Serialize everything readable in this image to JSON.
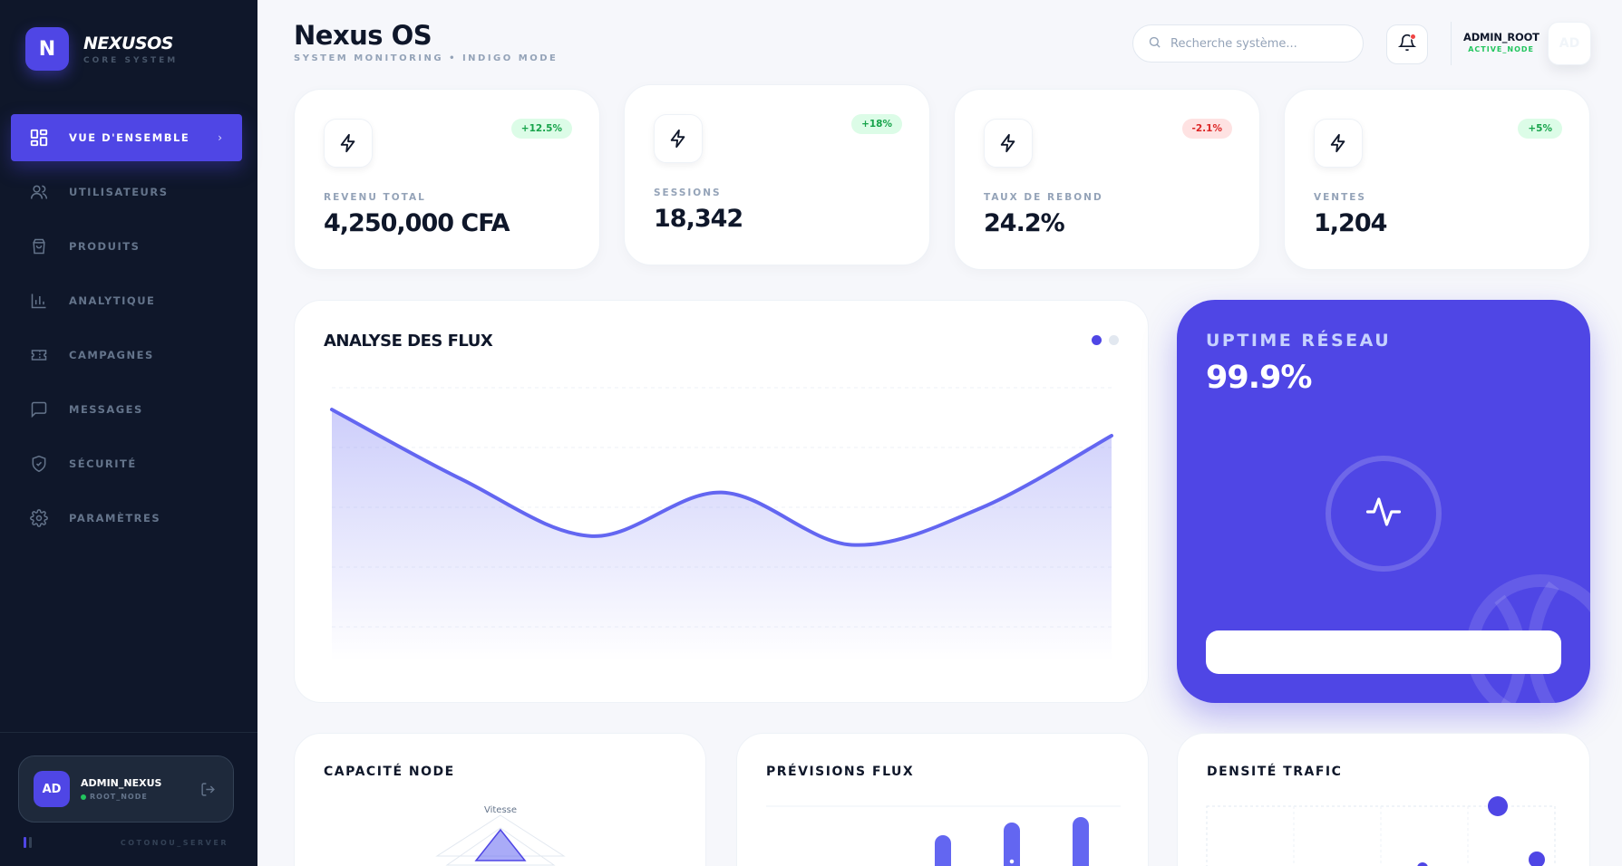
{
  "brand": {
    "logo_letter": "N",
    "name": "NEXUSOS",
    "subtitle": "CORE SYSTEM"
  },
  "nav": [
    {
      "label": "VUE D'ENSEMBLE",
      "icon": "grid-icon",
      "active": true
    },
    {
      "label": "UTILISATEURS",
      "icon": "users-icon",
      "active": false
    },
    {
      "label": "PRODUITS",
      "icon": "shopping-bag-icon",
      "active": false
    },
    {
      "label": "ANALYTIQUE",
      "icon": "bar-chart-icon",
      "active": false
    },
    {
      "label": "CAMPAGNES",
      "icon": "ticket-icon",
      "active": false
    },
    {
      "label": "MESSAGES",
      "icon": "message-square-icon",
      "active": false
    },
    {
      "label": "SÉCURITÉ",
      "icon": "shield-icon",
      "active": false
    },
    {
      "label": "PARAMÈTRES",
      "icon": "gear-icon",
      "active": false
    }
  ],
  "sidebar_user": {
    "initials": "AD",
    "name": "ADMIN_NEXUS",
    "role": "ROOT_NODE",
    "server": "COTONOU_SERVER"
  },
  "header": {
    "title": "Nexus OS",
    "subtitle": "SYSTEM MONITORING • INDIGO MODE",
    "search_placeholder": "Recherche système...",
    "user_name": "ADMIN_ROOT",
    "user_status": "ACTIVE_NODE",
    "avatar_initials": "AD"
  },
  "stats": [
    {
      "label": "REVENU TOTAL",
      "value": "4,250,000 CFA",
      "badge": "+12.5%",
      "trend": "up"
    },
    {
      "label": "SESSIONS",
      "value": "18,342",
      "badge": "+18%",
      "trend": "up"
    },
    {
      "label": "TAUX DE REBOND",
      "value": "24.2%",
      "badge": "-2.1%",
      "trend": "down"
    },
    {
      "label": "VENTES",
      "value": "1,204",
      "badge": "+5%",
      "trend": "up"
    }
  ],
  "flux": {
    "title": "ANALYSE DES FLUX"
  },
  "chart_data": {
    "type": "area",
    "title": "ANALYSE DES FLUX",
    "x": [
      0,
      1,
      2,
      3,
      4,
      5,
      6
    ],
    "values": [
      100,
      68,
      42,
      62,
      38,
      55,
      88
    ],
    "ylim": [
      0,
      110
    ],
    "grid": true,
    "color": "#6366f1"
  },
  "uptime": {
    "label": "UPTIME RÉSEAU",
    "value": "99.9%"
  },
  "bottom": {
    "capacity_title": "CAPACITÉ NODE",
    "radar_label_top": "Vitesse",
    "forecast_title": "PRÉVISIONS FLUX",
    "density_title": "DENSITÉ TRAFIC"
  },
  "colors": {
    "accent": "#4f46e5",
    "sidebar": "#0f172a",
    "success": "#22c55e",
    "danger": "#ef4444"
  }
}
